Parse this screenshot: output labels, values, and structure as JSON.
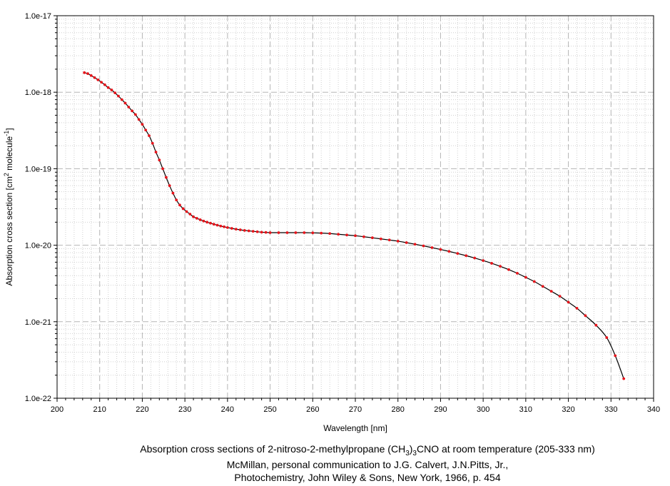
{
  "chart_data": {
    "type": "line",
    "title": "Absorption cross sections of 2-nitroso-2-methylpropane (CH3)3CNO at room temperature (205-333 nm)",
    "title_parts": {
      "before": "Absorption cross sections of 2-nitroso-2-methylpropane (CH",
      "sub1": "3",
      "middle": ")",
      "sub2": "3",
      "after": "CNO at room temperature (205-333 nm)"
    },
    "reference_line1": "McMillan, personal communication to J.G. Calvert, J.N.Pitts, Jr.,",
    "reference_line2": "Photochemistry, John Wiley & Sons, New York, 1966, p. 454",
    "xlabel": "Wavelength [nm]",
    "ylabel": {
      "prefix": "Absorption cross section [cm",
      "sup1": "2",
      "middle": " molecule",
      "sup2": "-1",
      "suffix": "]"
    },
    "xlim": [
      200,
      340
    ],
    "ylim": [
      1e-22,
      1e-17
    ],
    "yscale": "log",
    "grid": true,
    "x_ticks": [
      "200",
      "210",
      "220",
      "230",
      "240",
      "250",
      "260",
      "270",
      "280",
      "290",
      "300",
      "310",
      "320",
      "330",
      "340"
    ],
    "y_ticks": [
      "1.0e-22",
      "1.0e-21",
      "1.0e-20",
      "1.0e-19",
      "1.0e-18",
      "1.0e-17"
    ],
    "line_color": "#000000",
    "marker_color": "#e8141b",
    "series": [
      {
        "x": [
          206.4,
          207.2,
          208.0,
          208.8,
          209.6,
          210.4,
          211.2,
          212.0,
          212.8,
          213.6,
          214.4,
          215.2,
          216.0,
          216.8,
          217.6,
          218.4,
          219.2,
          220.0,
          220.8,
          221.6,
          222.4,
          223.2,
          224.0,
          224.8,
          225.6,
          226.4,
          227.2,
          228.0,
          228.8,
          229.6,
          230.4,
          231.2,
          232.0,
          232.8,
          233.6,
          234.4,
          235.2,
          236.0,
          236.8,
          237.6,
          238.4,
          239.2,
          240.0,
          241.0,
          242.0,
          243.0,
          244.0,
          245.0,
          246.0,
          247.0,
          248.0,
          249.0,
          250.0,
          252.0,
          254.0,
          256.0,
          258.0,
          260.0,
          262.0,
          264.0,
          266.0,
          268.0,
          270.0,
          272.0,
          274.0,
          276.0,
          278.0,
          280.0,
          282.0,
          284.0,
          286.0,
          288.0,
          290.0,
          292.0,
          294.0,
          296.0,
          298.0,
          300.0,
          302.0,
          304.0,
          306.0,
          308.0,
          310.0,
          312.0,
          314.0,
          316.0,
          318.0,
          320.0,
          322.0,
          324.0,
          326.5,
          329.0,
          331.0,
          333.0
        ],
        "y": [
          1.8e-18,
          1.75e-18,
          1.65e-18,
          1.55e-18,
          1.45e-18,
          1.35e-18,
          1.25e-18,
          1.15e-18,
          1.07e-18,
          9.8e-19,
          8.9e-19,
          8e-19,
          7.2e-19,
          6.4e-19,
          5.7e-19,
          5.1e-19,
          4.4e-19,
          3.8e-19,
          3.2e-19,
          2.7e-19,
          2.15e-19,
          1.65e-19,
          1.3e-19,
          1e-19,
          7.7e-20,
          6e-20,
          4.8e-20,
          3.9e-20,
          3.35e-20,
          3e-20,
          2.75e-20,
          2.55e-20,
          2.35e-20,
          2.25e-20,
          2.15e-20,
          2.07e-20,
          2e-20,
          1.94e-20,
          1.88e-20,
          1.83e-20,
          1.78e-20,
          1.74e-20,
          1.7e-20,
          1.66e-20,
          1.62e-20,
          1.59e-20,
          1.56e-20,
          1.54e-20,
          1.52e-20,
          1.5e-20,
          1.48e-20,
          1.47e-20,
          1.46e-20,
          1.46e-20,
          1.46e-20,
          1.46e-20,
          1.46e-20,
          1.45e-20,
          1.44e-20,
          1.42e-20,
          1.39e-20,
          1.36e-20,
          1.33e-20,
          1.29e-20,
          1.25e-20,
          1.21e-20,
          1.17e-20,
          1.13e-20,
          1.08e-20,
          1.03e-20,
          9.8e-21,
          9.3e-21,
          8.8e-21,
          8.3e-21,
          7.8e-21,
          7.3e-21,
          6.8e-21,
          6.3e-21,
          5.8e-21,
          5.3e-21,
          4.8e-21,
          4.3e-21,
          3.8e-21,
          3.35e-21,
          2.9e-21,
          2.5e-21,
          2.15e-21,
          1.8e-21,
          1.5e-21,
          1.2e-21,
          9e-22,
          6.2e-22,
          3.6e-22,
          1.8e-22
        ]
      }
    ]
  }
}
